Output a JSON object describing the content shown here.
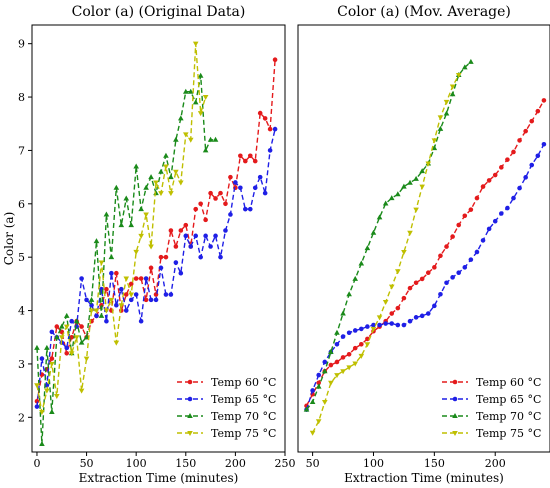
{
  "chart_data": [
    {
      "type": "line",
      "title": "Color (a) (Original Data)",
      "xlabel": "Extraction Time (minutes)",
      "ylabel": "Color (a)",
      "xlim": [
        -5,
        250
      ],
      "ylim": [
        1.35,
        9.35
      ],
      "xticks": [
        0,
        50,
        100,
        150,
        200,
        250
      ],
      "yticks": [
        2,
        3,
        4,
        5,
        6,
        7,
        8,
        9
      ],
      "grid": false,
      "legend_position": "bottom-right",
      "series": [
        {
          "name": "Temp 60 °C",
          "color": "#e41a1c",
          "marker": "dot",
          "x": [
            0,
            5,
            10,
            15,
            20,
            25,
            30,
            35,
            40,
            45,
            50,
            55,
            60,
            65,
            70,
            75,
            80,
            85,
            90,
            95,
            100,
            105,
            110,
            115,
            120,
            125,
            130,
            135,
            140,
            145,
            150,
            155,
            160,
            165,
            170,
            175,
            180,
            185,
            190,
            195,
            200,
            205,
            210,
            215,
            220,
            225,
            230,
            235,
            240
          ],
          "y": [
            2.3,
            2.8,
            2.9,
            3.1,
            3.7,
            3.6,
            3.2,
            3.5,
            3.8,
            3.7,
            3.5,
            3.8,
            3.9,
            4.1,
            4.4,
            4.0,
            4.7,
            4.0,
            4.3,
            4.5,
            4.6,
            4.6,
            4.2,
            4.8,
            4.3,
            5.0,
            5.0,
            5.5,
            5.2,
            5.5,
            5.6,
            5.2,
            5.9,
            6.0,
            5.7,
            6.2,
            6.1,
            6.2,
            6.0,
            6.5,
            6.3,
            6.9,
            6.8,
            6.9,
            6.8,
            7.7,
            7.6,
            7.4,
            8.7
          ]
        },
        {
          "name": "Temp 65 °C",
          "color": "#1f1fe6",
          "marker": "dot",
          "x": [
            0,
            5,
            10,
            15,
            20,
            25,
            30,
            35,
            40,
            45,
            50,
            55,
            60,
            65,
            70,
            75,
            80,
            85,
            90,
            95,
            100,
            105,
            110,
            115,
            120,
            125,
            130,
            135,
            140,
            145,
            150,
            155,
            160,
            165,
            170,
            175,
            180,
            185,
            190,
            195,
            200,
            205,
            210,
            215,
            220,
            225,
            230,
            235,
            240
          ],
          "y": [
            2.2,
            3.1,
            2.6,
            3.6,
            3.5,
            3.4,
            3.3,
            3.8,
            3.7,
            4.6,
            4.2,
            4.1,
            3.9,
            4.4,
            3.8,
            4.7,
            4.1,
            4.4,
            4.0,
            4.2,
            4.3,
            3.8,
            4.6,
            4.2,
            4.2,
            4.8,
            4.3,
            4.3,
            4.9,
            4.7,
            5.4,
            5.2,
            5.4,
            5.0,
            5.4,
            5.2,
            5.4,
            5.0,
            5.5,
            5.8,
            6.4,
            6.3,
            5.9,
            5.9,
            6.3,
            6.5,
            6.2,
            7.0,
            7.4
          ]
        },
        {
          "name": "Temp 70 °C",
          "color": "#1a8a1a",
          "marker": "triangle",
          "x": [
            0,
            5,
            10,
            15,
            20,
            25,
            30,
            35,
            40,
            45,
            50,
            55,
            60,
            65,
            70,
            75,
            80,
            85,
            90,
            95,
            100,
            105,
            110,
            115,
            120,
            125,
            130,
            135,
            140,
            145,
            150,
            155,
            160,
            165,
            170,
            175,
            180
          ],
          "y": [
            3.3,
            1.5,
            3.3,
            2.1,
            3.5,
            3.7,
            3.9,
            3.2,
            3.8,
            3.4,
            3.5,
            4.2,
            5.3,
            3.9,
            5.8,
            5.0,
            6.3,
            5.6,
            6.1,
            5.6,
            6.7,
            5.9,
            6.3,
            6.5,
            6.2,
            6.6,
            6.9,
            6.5,
            7.2,
            7.6,
            8.1,
            8.1,
            7.9,
            8.4,
            7.0,
            7.2,
            7.2
          ]
        },
        {
          "name": "Temp 75 °C",
          "color": "#bfbf00",
          "marker": "triangle-down",
          "x": [
            0,
            5,
            10,
            15,
            20,
            25,
            30,
            35,
            40,
            45,
            50,
            55,
            60,
            65,
            70,
            75,
            80,
            85,
            90,
            95,
            100,
            105,
            110,
            115,
            120,
            125,
            130,
            135,
            140,
            145,
            150,
            155,
            160,
            165,
            170
          ],
          "y": [
            2.6,
            2.1,
            2.5,
            3.0,
            2.4,
            3.5,
            3.7,
            3.2,
            3.5,
            2.5,
            3.1,
            4.0,
            4.0,
            4.9,
            4.0,
            4.2,
            3.4,
            4.1,
            4.6,
            4.3,
            5.1,
            5.4,
            5.8,
            5.2,
            6.4,
            6.2,
            6.7,
            6.2,
            6.6,
            6.4,
            7.3,
            7.2,
            9.0,
            7.7,
            8.0
          ]
        }
      ]
    },
    {
      "type": "line",
      "title": "Color (a) (Mov. Average)",
      "xlabel": "Extraction Time (minutes)",
      "ylabel": "",
      "xlim": [
        38,
        245
      ],
      "ylim": [
        2.55,
        8.1
      ],
      "xticks": [
        50,
        100,
        150,
        200
      ],
      "yticks": [],
      "grid": false,
      "legend_position": "bottom-right",
      "series": [
        {
          "name": "Temp 60 °C",
          "color": "#e41a1c",
          "marker": "dot",
          "x": [
            45,
            50,
            55,
            60,
            65,
            70,
            75,
            80,
            85,
            90,
            95,
            100,
            105,
            110,
            115,
            120,
            125,
            130,
            135,
            140,
            145,
            150,
            155,
            160,
            165,
            170,
            175,
            180,
            185,
            190,
            195,
            200,
            205,
            210,
            215,
            220,
            225,
            230,
            235,
            240
          ],
          "y": [
            3.15,
            3.3,
            3.45,
            3.6,
            3.68,
            3.72,
            3.78,
            3.82,
            3.9,
            3.95,
            4.02,
            4.12,
            4.18,
            4.25,
            4.35,
            4.42,
            4.55,
            4.68,
            4.75,
            4.8,
            4.88,
            4.95,
            5.1,
            5.22,
            5.35,
            5.5,
            5.62,
            5.7,
            5.85,
            6.0,
            6.08,
            6.15,
            6.25,
            6.35,
            6.45,
            6.6,
            6.72,
            6.85,
            6.98,
            7.12
          ]
        },
        {
          "name": "Temp 65 °C",
          "color": "#1f1fe6",
          "marker": "dot",
          "x": [
            45,
            50,
            55,
            60,
            65,
            70,
            75,
            80,
            85,
            90,
            95,
            100,
            105,
            110,
            115,
            120,
            125,
            130,
            135,
            140,
            145,
            150,
            155,
            160,
            165,
            170,
            175,
            180,
            185,
            190,
            195,
            200,
            205,
            210,
            215,
            220,
            225,
            230,
            235,
            240
          ],
          "y": [
            3.1,
            3.35,
            3.55,
            3.72,
            3.85,
            3.95,
            4.05,
            4.1,
            4.13,
            4.15,
            4.18,
            4.2,
            4.2,
            4.22,
            4.22,
            4.2,
            4.2,
            4.25,
            4.3,
            4.32,
            4.35,
            4.45,
            4.6,
            4.75,
            4.82,
            4.88,
            4.95,
            5.05,
            5.15,
            5.3,
            5.45,
            5.55,
            5.65,
            5.72,
            5.85,
            5.98,
            6.12,
            6.28,
            6.4,
            6.55
          ]
        },
        {
          "name": "Temp 70 °C",
          "color": "#1a8a1a",
          "marker": "triangle",
          "x": [
            45,
            50,
            55,
            60,
            65,
            70,
            75,
            80,
            85,
            90,
            95,
            100,
            105,
            110,
            115,
            120,
            125,
            130,
            135,
            140,
            145,
            150,
            155,
            160,
            165,
            170,
            175,
            180
          ],
          "y": [
            3.1,
            3.2,
            3.4,
            3.6,
            3.85,
            4.1,
            4.35,
            4.6,
            4.8,
            5.0,
            5.2,
            5.4,
            5.6,
            5.78,
            5.85,
            5.9,
            6.0,
            6.05,
            6.1,
            6.2,
            6.3,
            6.5,
            6.75,
            6.95,
            7.2,
            7.45,
            7.55,
            7.62
          ]
        },
        {
          "name": "Temp 75 °C",
          "color": "#bfbf00",
          "marker": "triangle-down",
          "x": [
            50,
            55,
            60,
            65,
            70,
            75,
            80,
            85,
            90,
            95,
            100,
            105,
            110,
            115,
            120,
            125,
            130,
            135,
            140,
            145,
            150,
            155,
            160,
            165,
            170
          ],
          "y": [
            2.8,
            2.95,
            3.2,
            3.45,
            3.55,
            3.6,
            3.65,
            3.7,
            3.8,
            3.95,
            4.15,
            4.3,
            4.5,
            4.7,
            4.9,
            5.15,
            5.4,
            5.7,
            6.0,
            6.3,
            6.6,
            6.9,
            7.1,
            7.3,
            7.45
          ]
        }
      ]
    }
  ]
}
